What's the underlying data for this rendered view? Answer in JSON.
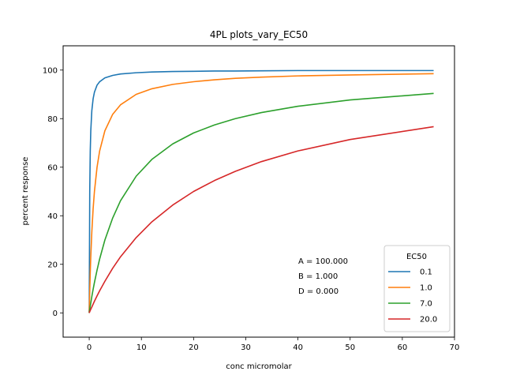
{
  "chart_data": {
    "type": "line",
    "title": "4PL plots_vary_EC50",
    "xlabel": "conc micromolar",
    "ylabel": "percent response",
    "xlim": [
      -5,
      70
    ],
    "ylim": [
      -10,
      110
    ],
    "xticks": [
      0,
      10,
      20,
      30,
      40,
      50,
      60,
      70
    ],
    "yticks": [
      0,
      20,
      40,
      60,
      80,
      100
    ],
    "grid": false,
    "legend": {
      "title": "EC50",
      "placement": "lower right"
    },
    "annotation": [
      "A = 100.000",
      "B = 1.000",
      "D = 0.000"
    ],
    "x": [
      0,
      0.1,
      0.2,
      0.3,
      0.5,
      0.75,
      1,
      1.5,
      2,
      3,
      4.5,
      6,
      9,
      12,
      16,
      20,
      24,
      28,
      33,
      40,
      50,
      66
    ],
    "series": [
      {
        "name": "0.1",
        "color": "#1f77b4",
        "values": [
          0,
          50.0,
          66.7,
          75.0,
          83.3,
          88.2,
          90.9,
          93.8,
          95.2,
          96.8,
          97.8,
          98.4,
          98.9,
          99.2,
          99.4,
          99.5,
          99.6,
          99.6,
          99.7,
          99.8,
          99.8,
          99.8
        ]
      },
      {
        "name": "1.0",
        "color": "#ff7f0e",
        "values": [
          0,
          9.1,
          16.7,
          23.1,
          33.3,
          42.9,
          50.0,
          60.0,
          66.7,
          75.0,
          81.8,
          85.7,
          90.0,
          92.3,
          94.1,
          95.2,
          96.0,
          96.6,
          97.1,
          97.6,
          98.0,
          98.5
        ]
      },
      {
        "name": "7.0",
        "color": "#2ca02c",
        "values": [
          0,
          1.4,
          2.8,
          4.1,
          6.7,
          9.7,
          12.5,
          17.6,
          22.2,
          30.0,
          39.1,
          46.2,
          56.3,
          63.2,
          69.6,
          74.1,
          77.4,
          80.0,
          82.5,
          85.1,
          87.7,
          90.4
        ]
      },
      {
        "name": "20.0",
        "color": "#d62728",
        "values": [
          0,
          0.5,
          1.0,
          1.5,
          2.4,
          3.6,
          4.8,
          7.0,
          9.1,
          13.0,
          18.4,
          23.1,
          31.0,
          37.5,
          44.4,
          50.0,
          54.5,
          58.3,
          62.3,
          66.7,
          71.4,
          76.7
        ]
      }
    ]
  }
}
